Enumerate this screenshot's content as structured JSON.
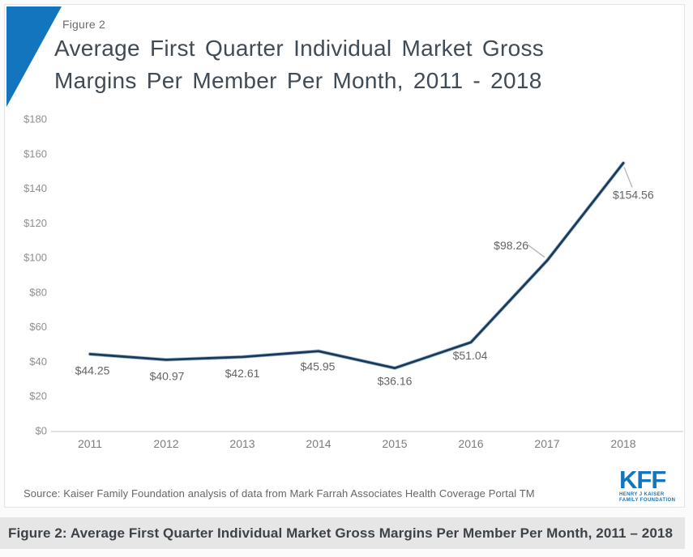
{
  "header": {
    "figure_label": "Figure 2",
    "title_lines": [
      "Average First Quarter Individual Market Gross",
      "Margins Per Member Per Month, 2011 - 2018"
    ]
  },
  "chart_data": {
    "type": "line",
    "title": "Average First Quarter Individual Market Gross Margins Per Member Per Month, 2011 - 2018",
    "categories": [
      "2011",
      "2012",
      "2013",
      "2014",
      "2015",
      "2016",
      "2017",
      "2018"
    ],
    "values": [
      44.25,
      40.97,
      42.61,
      45.95,
      36.16,
      51.04,
      98.26,
      154.56
    ],
    "point_labels": [
      "$44.25",
      "$40.97",
      "$42.61",
      "$45.95",
      "$36.16",
      "$51.04",
      "$98.26",
      "$154.56"
    ],
    "xlabel": "",
    "ylabel": "",
    "ylim": [
      0,
      180
    ],
    "ytick_step": 20,
    "ytick_labels": [
      "$0",
      "$20",
      "$40",
      "$60",
      "$80",
      "$100",
      "$120",
      "$140",
      "$160",
      "$180"
    ],
    "grid": false,
    "legend_position": "none"
  },
  "footer": {
    "source": "Source: Kaiser Family Foundation analysis of data from Mark Farrah Associates Health Coverage Portal TM",
    "logo": {
      "text": "KFF",
      "sub_line1": "HENRY J KAISER",
      "sub_line2": "FAMILY FOUNDATION"
    }
  },
  "caption": {
    "text": "Figure 2: Average First Quarter Individual Market Gross Margins Per Member Per Month, 2011 – 2018"
  },
  "colors": {
    "brand_blue": "#1375bd",
    "line": "#1b3a57",
    "line_halo": "#6390b4",
    "caption_bg": "#e6e6e6",
    "axis": "#d9d9d9"
  }
}
